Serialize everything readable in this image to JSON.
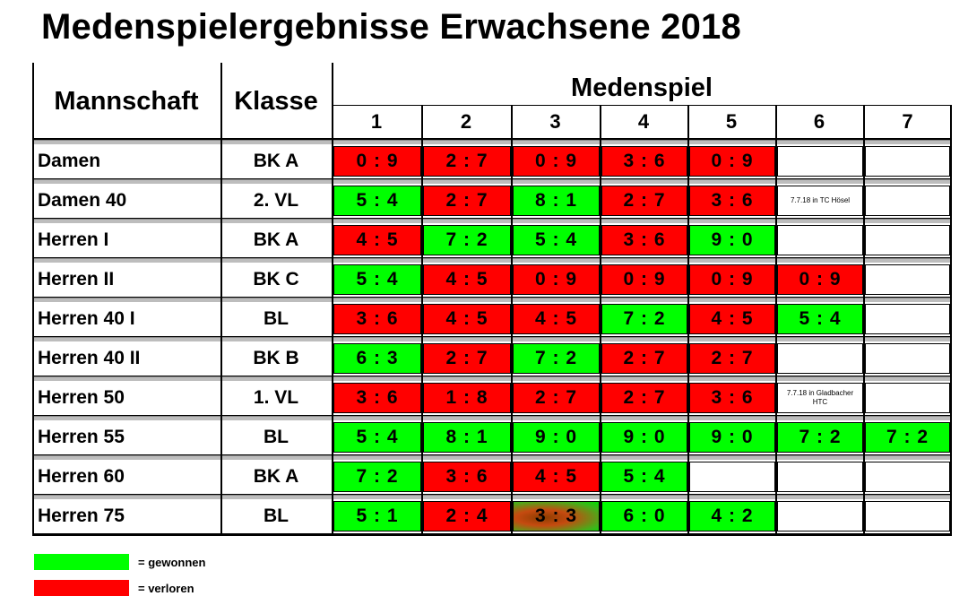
{
  "title": "Medenspielergebnisse Erwachsene 2018",
  "header": {
    "mannschaft": "Mannschaft",
    "klasse": "Klasse",
    "medenspiel": "Medenspiel",
    "game_numbers": [
      "1",
      "2",
      "3",
      "4",
      "5",
      "6",
      "7"
    ]
  },
  "rows": [
    {
      "team": "Damen",
      "klasse": "BK A",
      "results": [
        {
          "score": "0 : 9",
          "status": "loss"
        },
        {
          "score": "2 : 7",
          "status": "loss"
        },
        {
          "score": "0 : 9",
          "status": "loss"
        },
        {
          "score": "3 : 6",
          "status": "loss"
        },
        {
          "score": "0 : 9",
          "status": "loss"
        },
        {
          "score": "",
          "status": "empty"
        },
        {
          "score": "",
          "status": "empty"
        }
      ]
    },
    {
      "team": "Damen 40",
      "klasse": "2. VL",
      "results": [
        {
          "score": "5 : 4",
          "status": "win"
        },
        {
          "score": "2 : 7",
          "status": "loss"
        },
        {
          "score": "8 : 1",
          "status": "win"
        },
        {
          "score": "2 : 7",
          "status": "loss"
        },
        {
          "score": "3 : 6",
          "status": "loss"
        },
        {
          "score": "",
          "status": "empty",
          "note": "7.7.18 in TC Hösel"
        },
        {
          "score": "",
          "status": "empty"
        }
      ]
    },
    {
      "team": "Herren I",
      "klasse": "BK A",
      "results": [
        {
          "score": "4 : 5",
          "status": "loss"
        },
        {
          "score": "7 : 2",
          "status": "win"
        },
        {
          "score": "5 : 4",
          "status": "win"
        },
        {
          "score": "3 : 6",
          "status": "loss"
        },
        {
          "score": "9 : 0",
          "status": "win"
        },
        {
          "score": "",
          "status": "empty"
        },
        {
          "score": "",
          "status": "empty"
        }
      ]
    },
    {
      "team": "Herren II",
      "klasse": "BK C",
      "results": [
        {
          "score": "5 : 4",
          "status": "win"
        },
        {
          "score": "4 : 5",
          "status": "loss"
        },
        {
          "score": "0 : 9",
          "status": "loss"
        },
        {
          "score": "0 : 9",
          "status": "loss"
        },
        {
          "score": "0 : 9",
          "status": "loss"
        },
        {
          "score": "0 : 9",
          "status": "loss"
        },
        {
          "score": "",
          "status": "empty"
        }
      ]
    },
    {
      "team": "Herren 40 I",
      "klasse": "BL",
      "results": [
        {
          "score": "3 : 6",
          "status": "loss"
        },
        {
          "score": "4 : 5",
          "status": "loss"
        },
        {
          "score": "4 : 5",
          "status": "loss"
        },
        {
          "score": "7 : 2",
          "status": "win"
        },
        {
          "score": "4 : 5",
          "status": "loss"
        },
        {
          "score": "5 : 4",
          "status": "win"
        },
        {
          "score": "",
          "status": "empty"
        }
      ]
    },
    {
      "team": "Herren 40 II",
      "klasse": "BK B",
      "results": [
        {
          "score": "6 : 3",
          "status": "win"
        },
        {
          "score": "2 : 7",
          "status": "loss"
        },
        {
          "score": "7 : 2",
          "status": "win"
        },
        {
          "score": "2 : 7",
          "status": "loss"
        },
        {
          "score": "2 : 7",
          "status": "loss"
        },
        {
          "score": "",
          "status": "empty"
        },
        {
          "score": "",
          "status": "empty"
        }
      ]
    },
    {
      "team": "Herren 50",
      "klasse": "1. VL",
      "results": [
        {
          "score": "3 : 6",
          "status": "loss"
        },
        {
          "score": "1 : 8",
          "status": "loss"
        },
        {
          "score": "2 : 7",
          "status": "loss"
        },
        {
          "score": "2 : 7",
          "status": "loss"
        },
        {
          "score": "3 : 6",
          "status": "loss"
        },
        {
          "score": "",
          "status": "empty",
          "note": "7.7.18 in Gladbacher HTC"
        },
        {
          "score": "",
          "status": "empty"
        }
      ]
    },
    {
      "team": "Herren 55",
      "klasse": "BL",
      "results": [
        {
          "score": "5 : 4",
          "status": "win"
        },
        {
          "score": "8 : 1",
          "status": "win"
        },
        {
          "score": "9 : 0",
          "status": "win"
        },
        {
          "score": "9 : 0",
          "status": "win"
        },
        {
          "score": "9 : 0",
          "status": "win"
        },
        {
          "score": "7 : 2",
          "status": "win"
        },
        {
          "score": "7 : 2",
          "status": "win"
        }
      ]
    },
    {
      "team": "Herren 60",
      "klasse": "BK A",
      "results": [
        {
          "score": "7 : 2",
          "status": "win"
        },
        {
          "score": "3 : 6",
          "status": "loss"
        },
        {
          "score": "4 : 5",
          "status": "loss"
        },
        {
          "score": "5 : 4",
          "status": "win"
        },
        {
          "score": "",
          "status": "empty"
        },
        {
          "score": "",
          "status": "empty"
        },
        {
          "score": "",
          "status": "empty"
        }
      ]
    },
    {
      "team": "Herren 75",
      "klasse": "BL",
      "results": [
        {
          "score": "5 : 1",
          "status": "win"
        },
        {
          "score": "2 : 4",
          "status": "loss"
        },
        {
          "score": "3 : 3",
          "status": "draw"
        },
        {
          "score": "6 : 0",
          "status": "win"
        },
        {
          "score": "4 : 2",
          "status": "win"
        },
        {
          "score": "",
          "status": "empty"
        },
        {
          "score": "",
          "status": "empty"
        }
      ]
    }
  ],
  "legend": [
    {
      "color": "#00ff00",
      "label": "=  gewonnen"
    },
    {
      "color": "#ff0000",
      "label": "=  verloren"
    }
  ],
  "colors": {
    "win": "#00ff00",
    "loss": "#ff0000",
    "draw": "gradient-brown-green",
    "separator": "#bdbdbd"
  }
}
